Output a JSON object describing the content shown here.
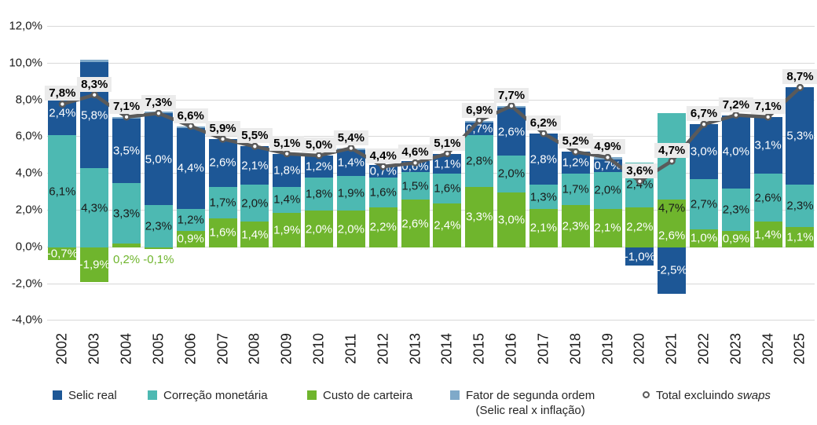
{
  "chart_data": {
    "type": "bar",
    "subtype": "stacked-bars-with-total-line",
    "categories": [
      "2002",
      "2003",
      "2004",
      "2005",
      "2006",
      "2007",
      "2008",
      "2009",
      "2010",
      "2011",
      "2012",
      "2013",
      "2014",
      "2015",
      "2016",
      "2017",
      "2018",
      "2019",
      "2020",
      "2021",
      "2022",
      "2023",
      "2024",
      "2025"
    ],
    "series": [
      {
        "name": "Selic real",
        "slug": "selic-real",
        "color": "#1D5796",
        "values": [
          2.4,
          5.8,
          3.5,
          5.0,
          4.4,
          2.6,
          2.1,
          1.8,
          1.2,
          1.4,
          0.7,
          0.6,
          1.1,
          0.7,
          2.6,
          2.8,
          1.2,
          0.7,
          -1.0,
          -2.5,
          3.0,
          4.0,
          3.1,
          5.3
        ]
      },
      {
        "name": "Correção monetária",
        "slug": "correcao-monetaria",
        "color": "#4DB9B2",
        "values": [
          6.1,
          4.3,
          3.3,
          2.3,
          1.2,
          1.7,
          2.0,
          1.4,
          1.8,
          1.9,
          1.6,
          1.5,
          1.6,
          2.8,
          2.0,
          1.3,
          1.7,
          2.0,
          2.4,
          4.7,
          2.7,
          2.3,
          2.6,
          2.3
        ]
      },
      {
        "name": "Custo de carteira",
        "slug": "custo-de-carteira",
        "color": "#6FB52D",
        "values": [
          -0.7,
          -1.9,
          0.2,
          -0.1,
          0.9,
          1.6,
          1.4,
          1.9,
          2.0,
          2.0,
          2.2,
          2.6,
          2.4,
          3.3,
          3.0,
          2.1,
          2.3,
          2.1,
          2.2,
          2.6,
          1.0,
          0.9,
          1.4,
          1.1
        ]
      },
      {
        "name": "Fator de segunda ordem (Selic real x inflação)",
        "slug": "fator-segunda-ordem",
        "color": "#7FA9C9",
        "unlabeled": true,
        "values": [
          0,
          0.1,
          0.1,
          0.1,
          0.1,
          0,
          0,
          0,
          0,
          0.1,
          0,
          0,
          0,
          0.1,
          0.1,
          0,
          0,
          0.1,
          0,
          0,
          0,
          0,
          0,
          0
        ]
      }
    ],
    "line_series": {
      "name": "Total excluindo swaps",
      "color": "#5A5A5A",
      "marker": "open-circle",
      "values": [
        7.8,
        8.3,
        7.1,
        7.3,
        6.6,
        5.9,
        5.5,
        5.1,
        5.0,
        5.4,
        4.4,
        4.6,
        5.1,
        6.9,
        7.7,
        6.2,
        5.2,
        4.9,
        3.6,
        4.7,
        6.7,
        7.2,
        7.1,
        8.7
      ]
    },
    "ylim": [
      -4,
      12
    ],
    "grid": true,
    "yticks": [
      "12,0%",
      "10,0%",
      "8,0%",
      "6,0%",
      "4,0%",
      "2,0%",
      "0,0%",
      "-2,0%",
      "-4,0%"
    ],
    "value_label_decimal": "comma",
    "legend_position": "bottom"
  },
  "legend": {
    "items": [
      {
        "slug": "selic-real",
        "label": "Selic real",
        "color": "#1D5796",
        "marker": "square"
      },
      {
        "slug": "correcao-monetaria",
        "label": "Correção monetária",
        "color": "#4DB9B2",
        "marker": "square"
      },
      {
        "slug": "custo-de-carteira",
        "label": "Custo de carteira",
        "color": "#6FB52D",
        "marker": "square"
      },
      {
        "slug": "fator-segunda-ordem",
        "label": "Fator de segunda ordem",
        "label_line2": "(Selic real x inflação)",
        "color": "#7FA9C9",
        "marker": "square"
      },
      {
        "slug": "total-excluindo-swaps",
        "label": "Total excluindo ",
        "label_italic": "swaps",
        "color": "#5A5A5A",
        "marker": "ring"
      }
    ]
  },
  "colors": {
    "gridline": "#D8D8D8",
    "total_label_bg": "#EBEBEB",
    "label_on_teal": "#1A1A1A",
    "label_on_dark": "#FFFFFF"
  }
}
